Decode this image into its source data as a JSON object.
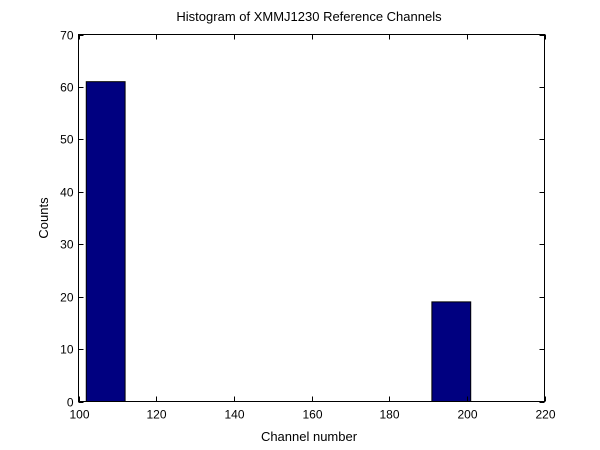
{
  "chart_data": {
    "type": "bar",
    "title": "Histogram of XMMJ1230 Reference Channels",
    "xlabel": "Channel number",
    "ylabel": "Counts",
    "xlim": [
      100,
      220
    ],
    "ylim": [
      0,
      70
    ],
    "xticks": [
      100,
      120,
      140,
      160,
      180,
      200,
      220
    ],
    "yticks": [
      0,
      10,
      20,
      30,
      40,
      50,
      60,
      70
    ],
    "bar_color": "#000080",
    "grid": false,
    "bins": [
      {
        "x_start": 102,
        "x_end": 112,
        "value": 61
      },
      {
        "x_start": 191,
        "x_end": 201,
        "value": 19
      }
    ]
  }
}
